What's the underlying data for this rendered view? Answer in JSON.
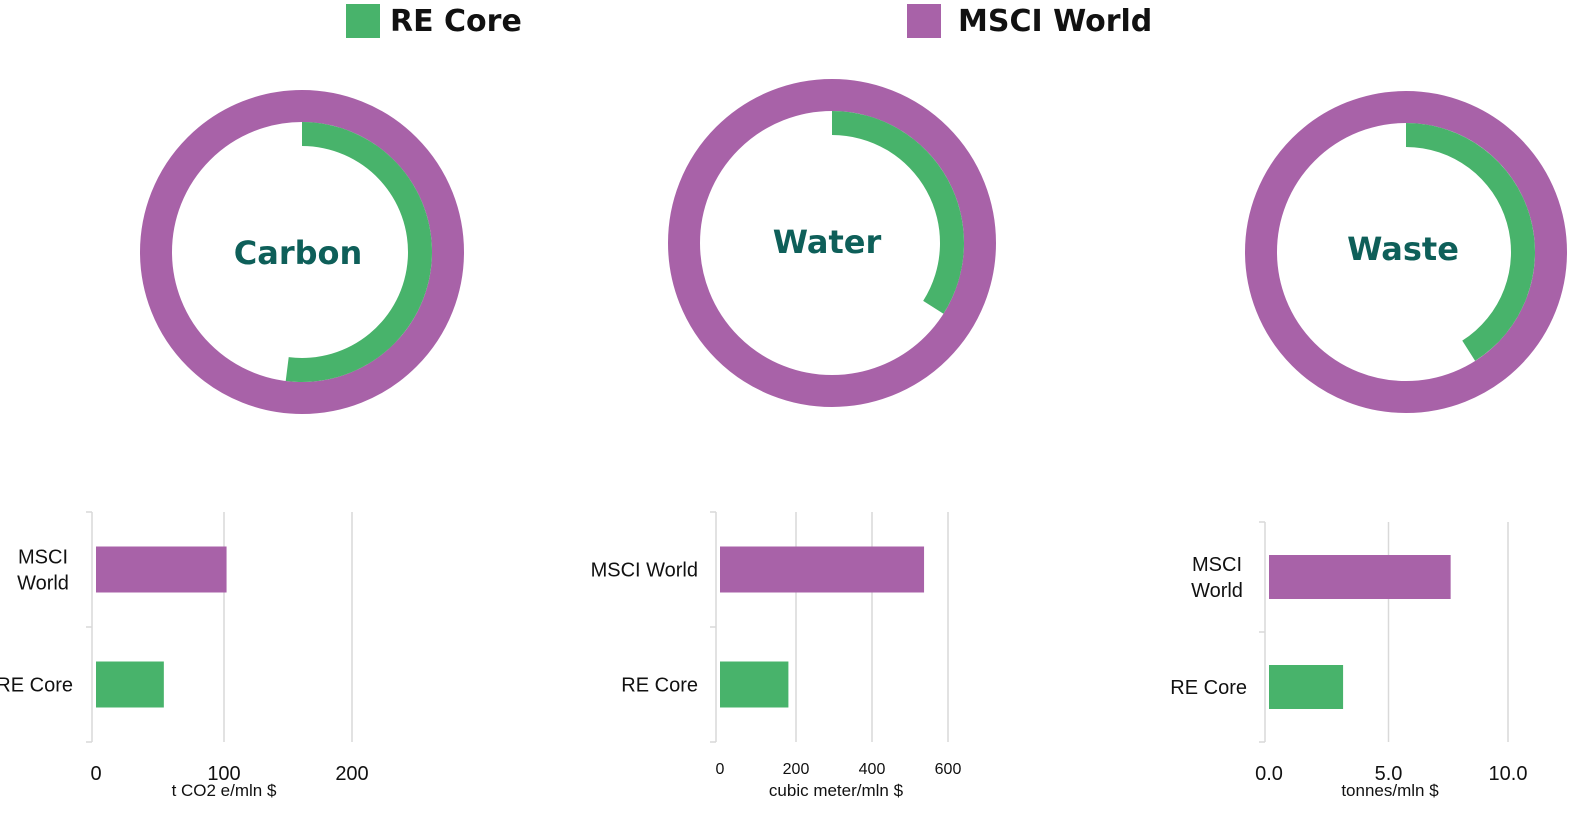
{
  "colors": {
    "re_core": "#48b36b",
    "msci_world": "#a862a8",
    "label_teal": "#0e5f59",
    "grid": "#d9d9d9"
  },
  "legend": {
    "re_core": "RE Core",
    "msci_world": "MSCI World"
  },
  "chart_data": [
    {
      "type": "pie",
      "subtype": "nested-donut",
      "center_label": "Carbon",
      "series": [
        {
          "name": "MSCI World",
          "fraction": 1.0
        },
        {
          "name": "RE Core",
          "fraction": 0.52
        }
      ]
    },
    {
      "type": "pie",
      "subtype": "nested-donut",
      "center_label": "Water",
      "series": [
        {
          "name": "MSCI World",
          "fraction": 1.0
        },
        {
          "name": "RE Core",
          "fraction": 0.34
        }
      ]
    },
    {
      "type": "pie",
      "subtype": "nested-donut",
      "center_label": "Waste",
      "series": [
        {
          "name": "MSCI World",
          "fraction": 1.0
        },
        {
          "name": "RE Core",
          "fraction": 0.41
        }
      ]
    },
    {
      "type": "bar",
      "orientation": "horizontal",
      "categories": [
        "MSCI World",
        "RE Core"
      ],
      "category_lines": [
        [
          "MSCI",
          "World"
        ],
        [
          "RE Core"
        ]
      ],
      "values": [
        102,
        53
      ],
      "xlim": [
        0,
        200
      ],
      "ticks": [
        0,
        100,
        200
      ],
      "tick_labels": [
        "0",
        "100",
        "200"
      ],
      "xlabel": "t CO2 e/mln $"
    },
    {
      "type": "bar",
      "orientation": "horizontal",
      "categories": [
        "MSCI World",
        "RE Core"
      ],
      "category_lines": [
        [
          "MSCI World"
        ],
        [
          "RE Core"
        ]
      ],
      "values": [
        537,
        180
      ],
      "xlim": [
        0,
        600
      ],
      "ticks": [
        0,
        200,
        400,
        600
      ],
      "tick_labels": [
        "0",
        "200",
        "400",
        "600"
      ],
      "xlabel": "cubic meter/mln $"
    },
    {
      "type": "bar",
      "orientation": "horizontal",
      "categories": [
        "MSCI World",
        "RE Core"
      ],
      "category_lines": [
        [
          "MSCI",
          "World"
        ],
        [
          "RE Core"
        ]
      ],
      "values": [
        7.6,
        3.1
      ],
      "xlim": [
        0,
        10
      ],
      "ticks": [
        0,
        5,
        10
      ],
      "tick_labels": [
        "0.0",
        "5.0",
        "10.0"
      ],
      "xlabel": "tonnes/mln $"
    }
  ]
}
